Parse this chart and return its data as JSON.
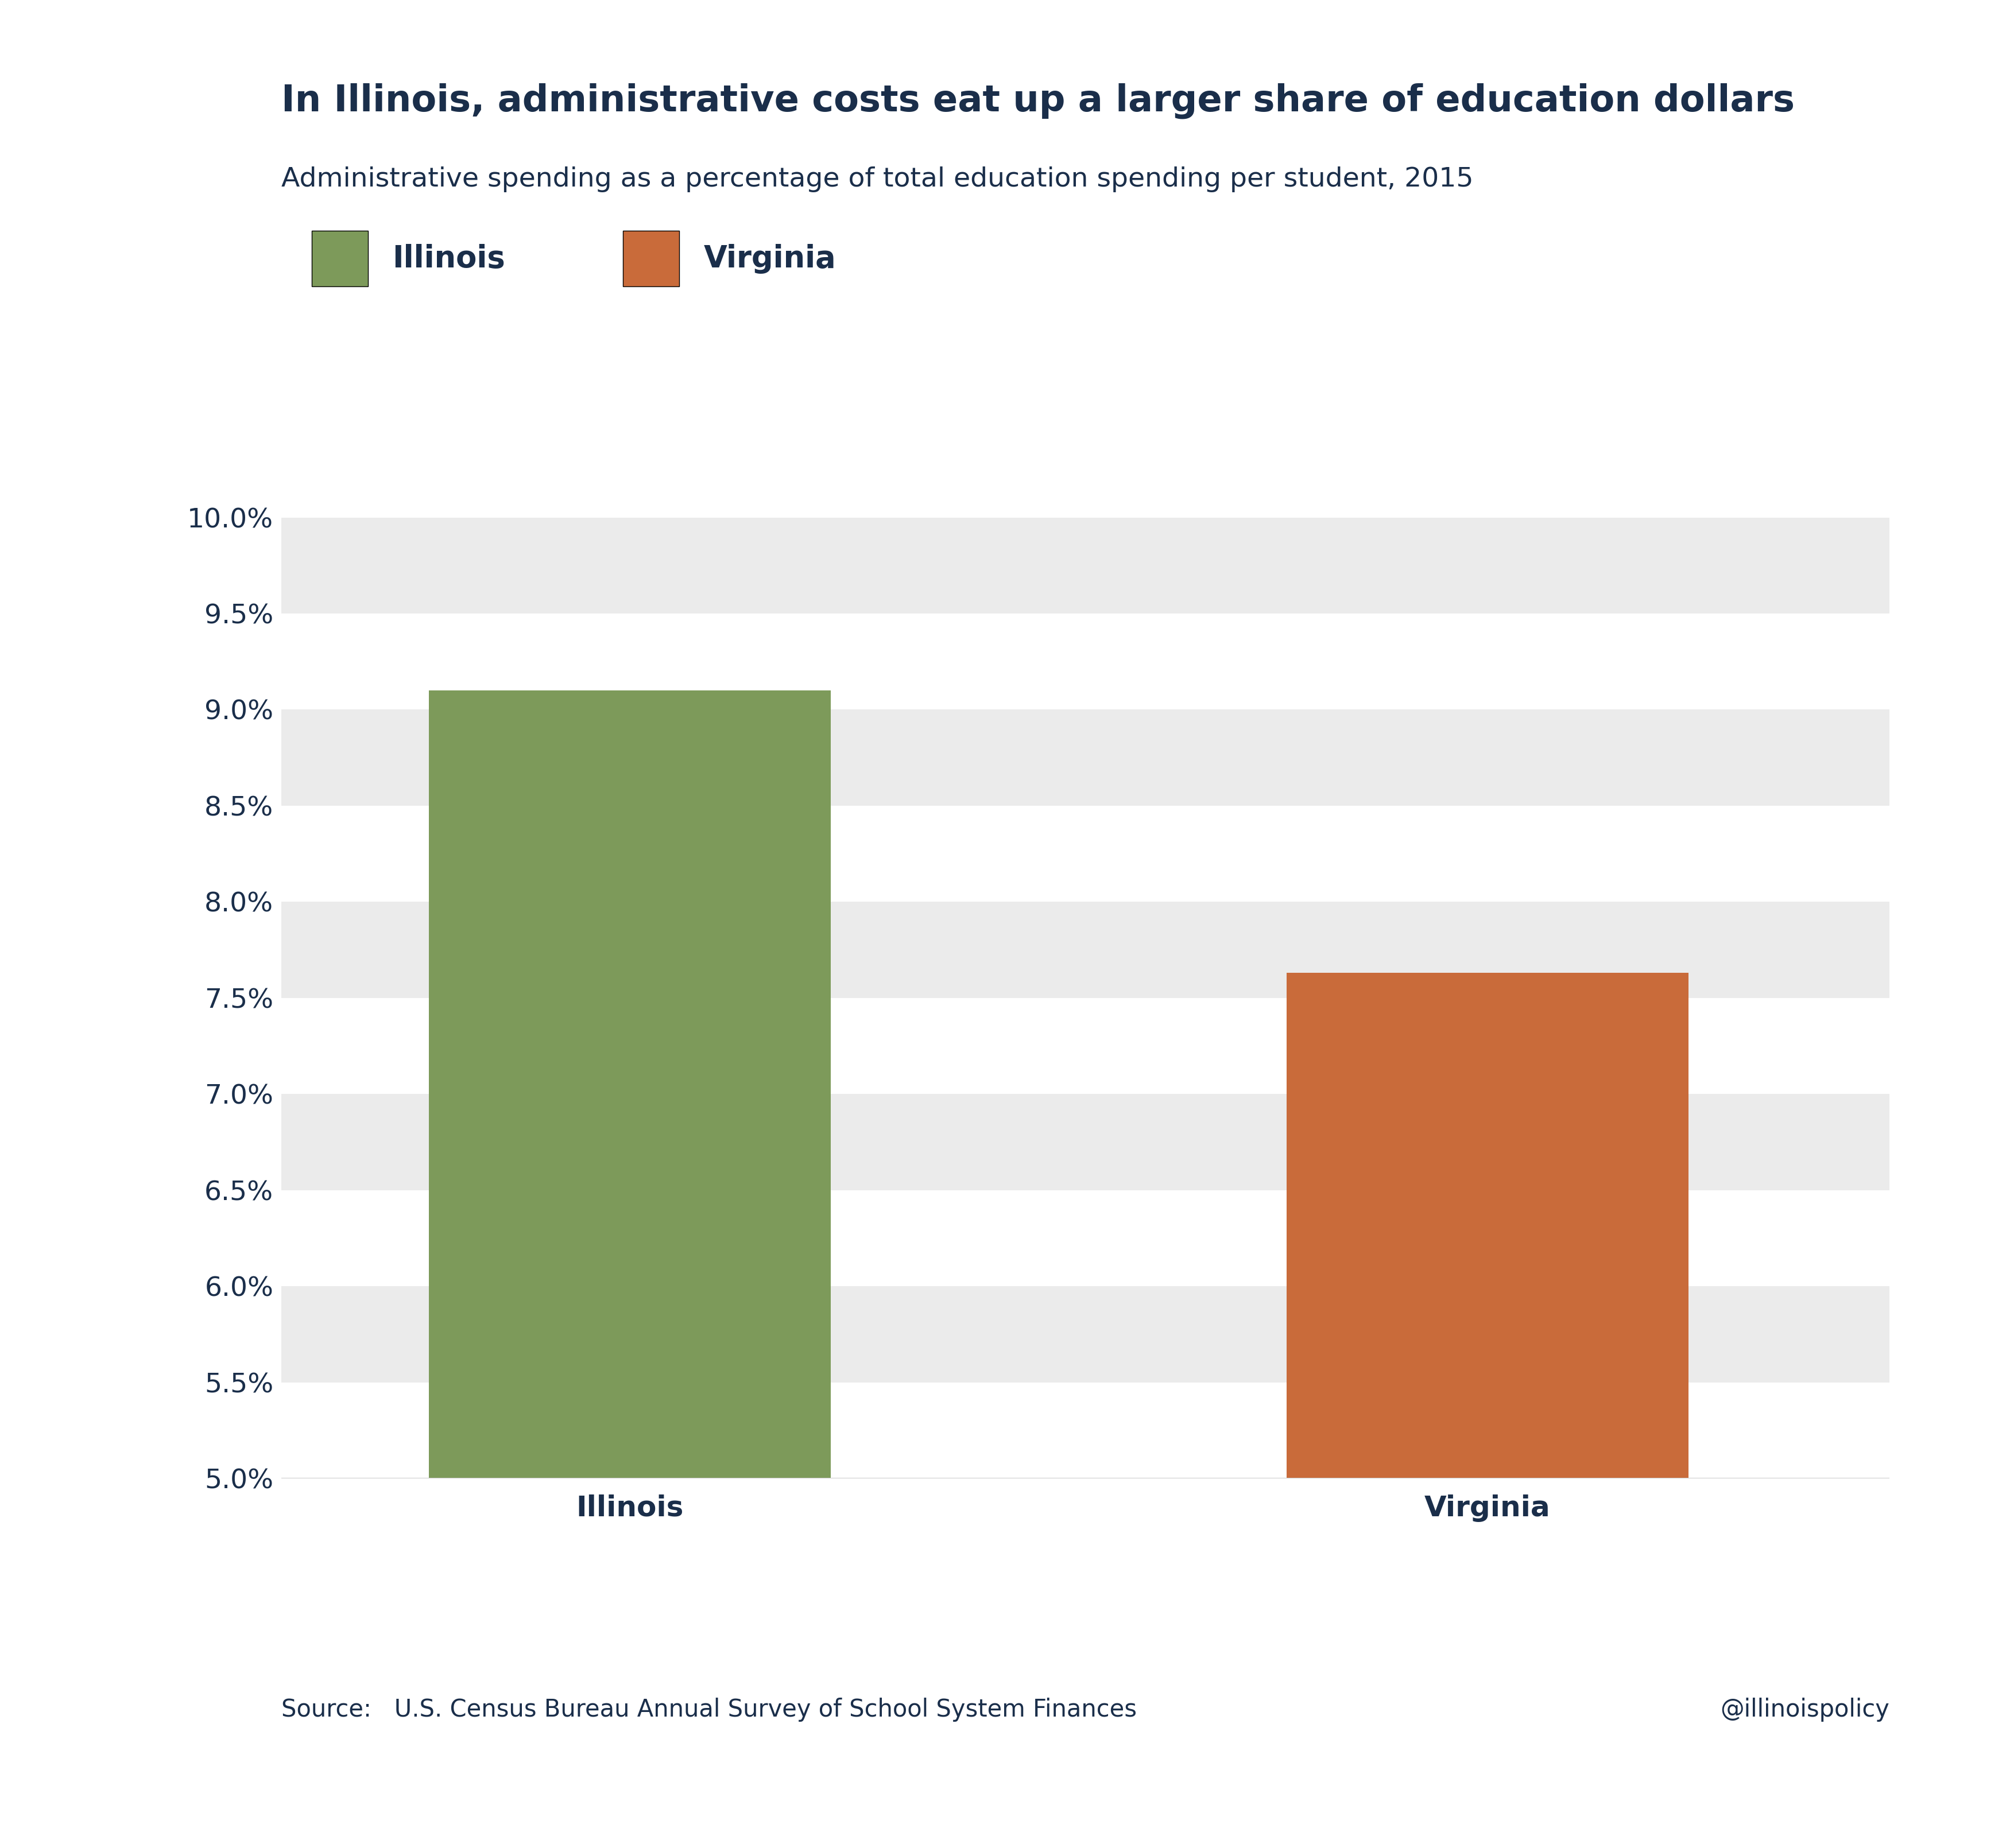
{
  "title": "In Illinois, administrative costs eat up a larger share of education dollars",
  "subtitle": "Administrative spending as a percentage of total education spending per student, 2015",
  "categories": [
    "Illinois",
    "Virginia"
  ],
  "values": [
    9.1,
    7.63
  ],
  "colors": [
    "#7d9a5a",
    "#c96b3a"
  ],
  "illinois_color": "#7d9a5a",
  "virginia_color": "#c96b3a",
  "ymin": 5.0,
  "ymax": 10.0,
  "ytick_step": 0.5,
  "title_color": "#1a2e4a",
  "subtitle_color": "#1a2e4a",
  "source_text": "Source:   U.S. Census Bureau Annual Survey of School System Finances",
  "watermark": "@illinoispolicy",
  "background_color": "#ffffff",
  "band_color_light": "#ebebeb",
  "band_color_white": "#ffffff",
  "title_fontsize": 46,
  "subtitle_fontsize": 34,
  "tick_fontsize": 34,
  "legend_fontsize": 38,
  "xlabel_fontsize": 36,
  "source_fontsize": 30,
  "bar_positions": [
    1.0,
    2.6
  ],
  "bar_width": 0.75,
  "xlim": [
    0.35,
    3.35
  ]
}
